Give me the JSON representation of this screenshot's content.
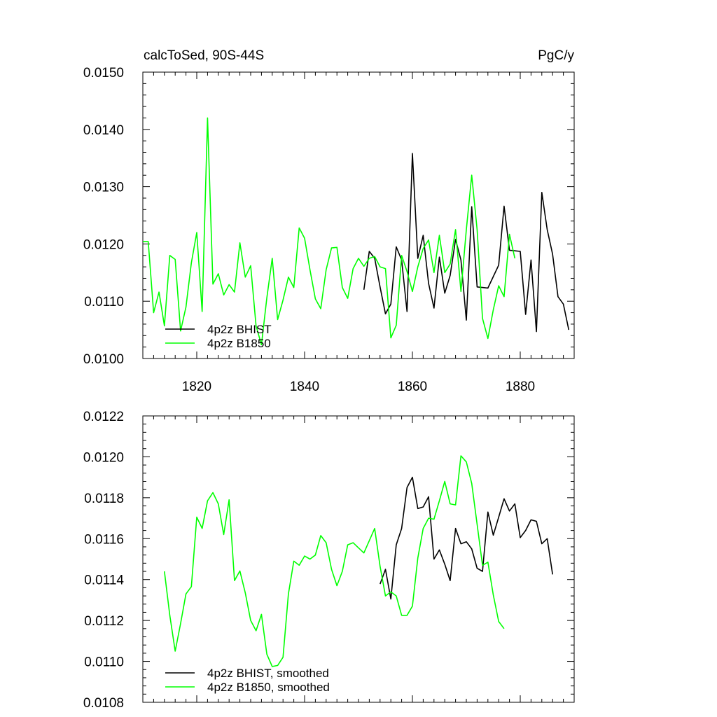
{
  "figure": {
    "title_left": "calcToSed, 90S-44S",
    "title_right": "PgC/y"
  },
  "chart_data": [
    {
      "type": "line",
      "title": "calcToSed, 90S-44S",
      "units": "PgC/y",
      "xlim": [
        1810,
        1890
      ],
      "ylim": [
        0.01,
        0.015
      ],
      "x_ticks": [
        1820,
        1840,
        1860,
        1880
      ],
      "x_tick_labels": [
        "1820",
        "1840",
        "1860",
        "1880"
      ],
      "y_ticks": [
        0.01,
        0.011,
        0.012,
        0.013,
        0.014,
        0.015
      ],
      "y_tick_labels": [
        "0.0100",
        "0.0110",
        "0.0120",
        "0.0130",
        "0.0140",
        "0.0150"
      ],
      "legend_position": "bottom-left",
      "grid": false,
      "series": [
        {
          "name": "4p2z BHIST",
          "color": "#000000",
          "x": [
            1851,
            1852,
            1853,
            1854,
            1855,
            1856,
            1857,
            1858,
            1859,
            1860,
            1861,
            1862,
            1863,
            1864,
            1865,
            1866,
            1867,
            1868,
            1869,
            1870,
            1871,
            1872,
            1873,
            1874,
            1875,
            1876,
            1877,
            1878,
            1879,
            1880,
            1881,
            1882,
            1883,
            1884,
            1885,
            1886,
            1887,
            1888,
            1889
          ],
          "y": [
            0.0112,
            0.01187,
            0.01175,
            0.01125,
            0.01078,
            0.01095,
            0.01195,
            0.01172,
            0.01082,
            0.01358,
            0.01175,
            0.01215,
            0.01131,
            0.01088,
            0.01177,
            0.01114,
            0.01145,
            0.01208,
            0.01172,
            0.01067,
            0.01265,
            0.01125,
            0.01124,
            0.01123,
            0.01143,
            0.01163,
            0.01266,
            0.01189,
            0.01188,
            0.01187,
            0.01077,
            0.01172,
            0.01047,
            0.0129,
            0.01225,
            0.01182,
            0.01108,
            0.01095,
            0.0105
          ]
        },
        {
          "name": "4p2z B1850",
          "color": "#00ff00",
          "x": [
            1810,
            1811,
            1812,
            1813,
            1814,
            1815,
            1816,
            1817,
            1818,
            1819,
            1820,
            1821,
            1822,
            1823,
            1824,
            1825,
            1826,
            1827,
            1828,
            1829,
            1830,
            1831,
            1832,
            1833,
            1834,
            1835,
            1836,
            1837,
            1838,
            1839,
            1840,
            1841,
            1842,
            1843,
            1844,
            1845,
            1846,
            1847,
            1848,
            1849,
            1850,
            1851,
            1852,
            1853,
            1854,
            1855,
            1856,
            1857,
            1858,
            1859,
            1860,
            1861,
            1862,
            1863,
            1864,
            1865,
            1866,
            1867,
            1868,
            1869,
            1870,
            1871,
            1872,
            1873,
            1874,
            1875,
            1876,
            1877,
            1878,
            1879
          ],
          "y": [
            0.01204,
            0.01204,
            0.0108,
            0.01116,
            0.01057,
            0.0118,
            0.01173,
            0.01048,
            0.0109,
            0.01167,
            0.0122,
            0.01082,
            0.0142,
            0.0113,
            0.01148,
            0.01111,
            0.01129,
            0.01116,
            0.01202,
            0.01142,
            0.01162,
            0.01057,
            0.01024,
            0.01106,
            0.01175,
            0.01068,
            0.01102,
            0.01142,
            0.01124,
            0.01228,
            0.0121,
            0.01155,
            0.01104,
            0.01087,
            0.01155,
            0.01193,
            0.01194,
            0.01124,
            0.01105,
            0.01157,
            0.01175,
            0.01161,
            0.01175,
            0.01178,
            0.0116,
            0.01157,
            0.01036,
            0.01058,
            0.0118,
            0.01152,
            0.01117,
            0.0116,
            0.01192,
            0.01207,
            0.0115,
            0.01215,
            0.0115,
            0.01165,
            0.01225,
            0.01117,
            0.01225,
            0.0132,
            0.01225,
            0.0107,
            0.01035,
            0.01085,
            0.01127,
            0.01108,
            0.01217,
            0.01175
          ]
        }
      ]
    },
    {
      "type": "line",
      "title": "",
      "xlim": [
        1810,
        1890
      ],
      "ylim": [
        0.0108,
        0.0122
      ],
      "x_ticks": [
        1820,
        1840,
        1860,
        1880
      ],
      "y_ticks": [
        0.0108,
        0.011,
        0.0112,
        0.0114,
        0.0116,
        0.0118,
        0.012,
        0.0122
      ],
      "y_tick_labels": [
        "0.0108",
        "0.0110",
        "0.0112",
        "0.0114",
        "0.0116",
        "0.0118",
        "0.0120",
        "0.0122"
      ],
      "legend_position": "bottom-left",
      "grid": false,
      "series": [
        {
          "name": "4p2z BHIST, smoothed",
          "color": "#000000",
          "x": [
            1854,
            1855,
            1856,
            1857,
            1858,
            1859,
            1860,
            1861,
            1862,
            1863,
            1864,
            1865,
            1866,
            1867,
            1868,
            1869,
            1870,
            1871,
            1872,
            1873,
            1874,
            1875,
            1876,
            1877,
            1878,
            1879,
            1880,
            1881,
            1882,
            1883,
            1884,
            1885,
            1886
          ],
          "y": [
            0.011378,
            0.01145,
            0.011305,
            0.01157,
            0.01165,
            0.01185,
            0.0119,
            0.011747,
            0.011755,
            0.011805,
            0.0115,
            0.011545,
            0.011475,
            0.011395,
            0.01165,
            0.011575,
            0.011585,
            0.01155,
            0.011455,
            0.01144,
            0.01173,
            0.011617,
            0.011705,
            0.011795,
            0.011735,
            0.01177,
            0.011605,
            0.01164,
            0.011692,
            0.011685,
            0.011575,
            0.0116,
            0.011425
          ]
        },
        {
          "name": "4p2z B1850, smoothed",
          "color": "#00ff00",
          "x": [
            1814,
            1815,
            1816,
            1817,
            1818,
            1819,
            1820,
            1821,
            1822,
            1823,
            1824,
            1825,
            1826,
            1827,
            1828,
            1829,
            1830,
            1831,
            1832,
            1833,
            1834,
            1835,
            1836,
            1837,
            1838,
            1839,
            1840,
            1841,
            1842,
            1843,
            1844,
            1845,
            1846,
            1847,
            1848,
            1849,
            1850,
            1851,
            1852,
            1853,
            1854,
            1855,
            1856,
            1857,
            1858,
            1859,
            1860,
            1861,
            1862,
            1863,
            1864,
            1865,
            1866,
            1867,
            1868,
            1869,
            1870,
            1871,
            1872,
            1873,
            1874,
            1875,
            1876,
            1877
          ],
          "y": [
            0.01144,
            0.011225,
            0.01105,
            0.011185,
            0.01133,
            0.011365,
            0.011705,
            0.01165,
            0.011785,
            0.011825,
            0.01177,
            0.01162,
            0.01179,
            0.011395,
            0.011442,
            0.011335,
            0.0112,
            0.01115,
            0.01123,
            0.011035,
            0.010975,
            0.01098,
            0.01102,
            0.01133,
            0.01149,
            0.01147,
            0.011515,
            0.0115,
            0.01152,
            0.011615,
            0.01158,
            0.01145,
            0.01137,
            0.01144,
            0.01157,
            0.01158,
            0.011555,
            0.01153,
            0.01159,
            0.01165,
            0.011465,
            0.01132,
            0.01134,
            0.01132,
            0.011225,
            0.011225,
            0.01127,
            0.011505,
            0.01165,
            0.0117,
            0.011695,
            0.011785,
            0.01188,
            0.01177,
            0.011765,
            0.012005,
            0.011975,
            0.01187,
            0.01167,
            0.01147,
            0.011485,
            0.011325,
            0.011195,
            0.01116
          ]
        }
      ]
    }
  ]
}
